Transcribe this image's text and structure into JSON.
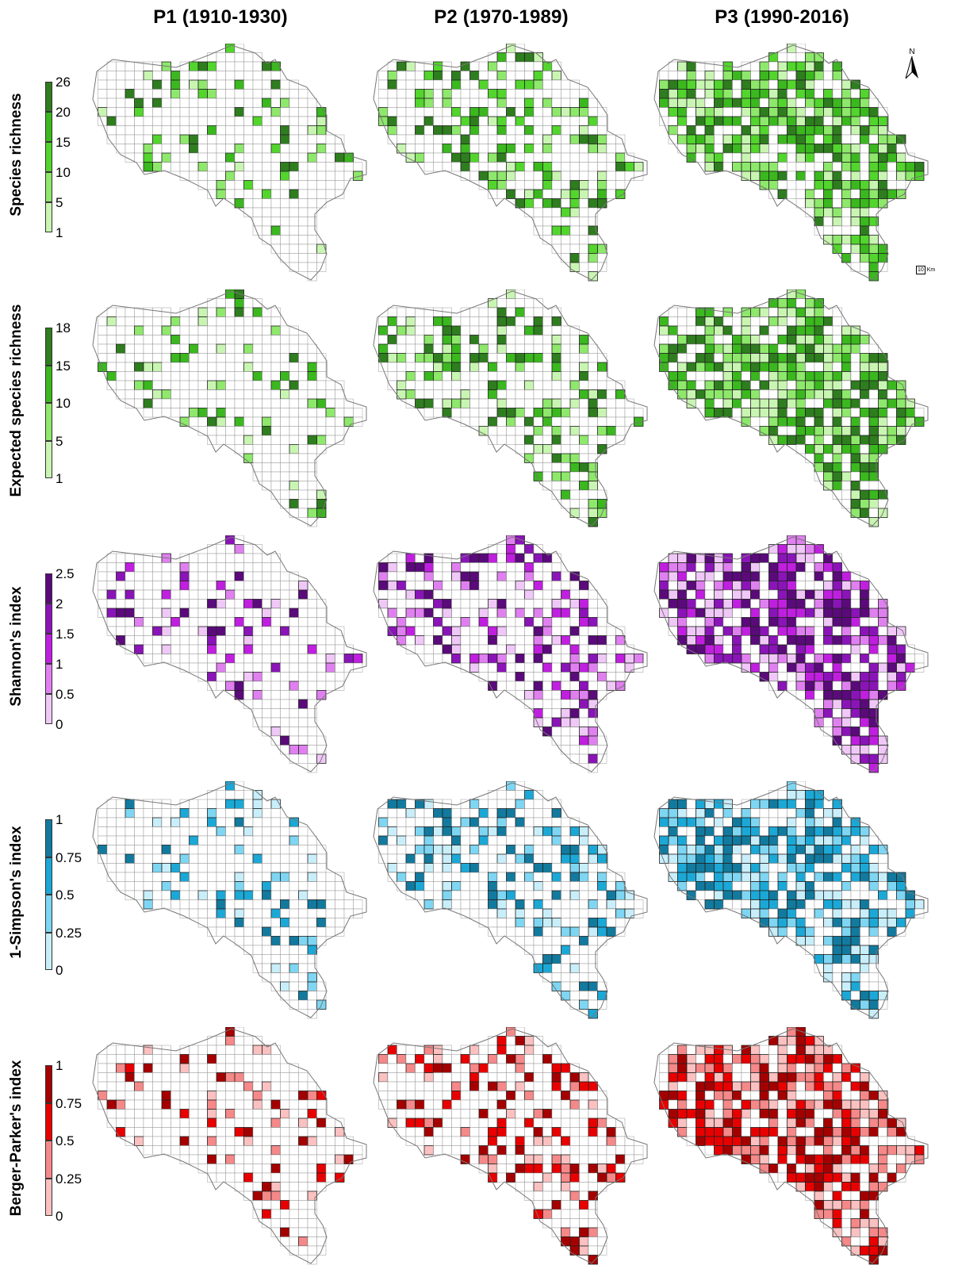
{
  "columns": [
    {
      "label": "P1 (1910-1930)",
      "seed": 11,
      "coverage": 0.16
    },
    {
      "label": "P2 (1970-1989)",
      "seed": 23,
      "coverage": 0.36
    },
    {
      "label": "P3 (1990-2016)",
      "seed": 37,
      "coverage": 0.72
    }
  ],
  "rows": [
    {
      "label": "Species richness",
      "ticks": [
        "26",
        "20",
        "15",
        "10",
        "5",
        "1"
      ],
      "colors": [
        "#2e7d1e",
        "#3ab81e",
        "#52d52c",
        "#8ee86b",
        "#c9f5b2"
      ]
    },
    {
      "label": "Expected species richness",
      "ticks": [
        "18",
        "15",
        "10",
        "5",
        "1"
      ],
      "colors": [
        "#2e7d1e",
        "#3ab81e",
        "#8ee86b",
        "#c9f5b2"
      ]
    },
    {
      "label": "Shannon's index",
      "ticks": [
        "2.5",
        "2",
        "1.5",
        "1",
        "0.5",
        "0"
      ],
      "colors": [
        "#5a0a7a",
        "#8a14b8",
        "#c01fe0",
        "#e080f0",
        "#f0c8f8"
      ]
    },
    {
      "label": "1-Simpson's index",
      "ticks": [
        "1",
        "0.75",
        "0.5",
        "0.25",
        "0"
      ],
      "colors": [
        "#127a9e",
        "#1ba8d6",
        "#7ed6f2",
        "#c8eefa"
      ]
    },
    {
      "label": "Berger-Parker's index",
      "ticks": [
        "1",
        "0.75",
        "0.5",
        "0.25",
        "0"
      ],
      "colors": [
        "#a50000",
        "#e80000",
        "#f58888",
        "#fbc0c0"
      ]
    }
  ],
  "north_arrow": "N",
  "scale_bar": {
    "value": "10",
    "unit": "Km"
  }
}
